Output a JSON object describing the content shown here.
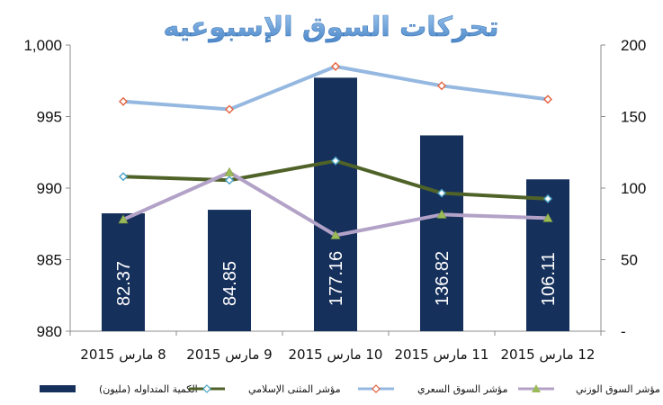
{
  "chart_data": {
    "type": "bar",
    "title": "تحركات السوق الإسبوعيه",
    "categories": [
      "8 مارس 2015",
      "9 مارس 2015",
      "10 مارس 2015",
      "11 مارس 2015",
      "12 مارس 2015"
    ],
    "left_axis": {
      "min": 980,
      "max": 1000,
      "ticks": [
        "980",
        "985",
        "990",
        "995",
        "1,000"
      ]
    },
    "right_axis": {
      "min": 0,
      "max": 200,
      "ticks": [
        "-",
        "50",
        "100",
        "150",
        "200"
      ]
    },
    "grid": false,
    "legend_position": "bottom",
    "series": [
      {
        "name": "الكمية المتداوله (مليون)",
        "kind": "bar",
        "axis": "right",
        "color": "#16305c",
        "values": [
          82.37,
          84.85,
          177.16,
          136.82,
          106.11
        ],
        "labels": [
          "82.37",
          "84.85",
          "177.16",
          "136.82",
          "106.11"
        ]
      },
      {
        "name": "مؤشر المثنى الإسلامي",
        "kind": "line",
        "axis": "left",
        "color": "#4f6228",
        "marker": "diamond",
        "marker_color": "#4aa3c9",
        "values": [
          990.8,
          990.55,
          991.9,
          989.65,
          989.25
        ]
      },
      {
        "name": "مؤشر السوق السعري",
        "kind": "line",
        "axis": "left",
        "color": "#95b8e0",
        "marker": "diamond",
        "marker_color": "#e4603a",
        "values": [
          996.05,
          995.5,
          998.5,
          997.15,
          996.2
        ]
      },
      {
        "name": "مؤشر السوق الوزني",
        "kind": "line",
        "axis": "left",
        "color": "#b3a2c7",
        "marker": "triangle",
        "marker_color": "#9bbb59",
        "values": [
          987.8,
          991.1,
          986.7,
          988.15,
          987.9
        ]
      }
    ]
  }
}
